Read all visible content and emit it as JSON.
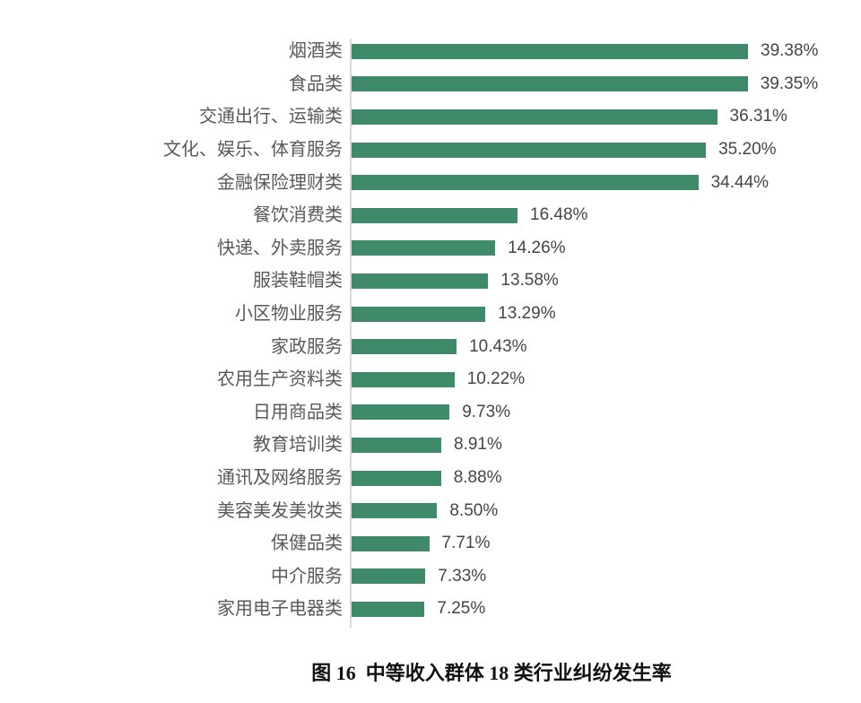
{
  "page": {
    "background_color": "#ffffff"
  },
  "chart_data": {
    "type": "bar",
    "orientation": "horizontal",
    "title": "图 16  中等收入群体 18 类行业纠纷发生率",
    "xlabel": "",
    "ylabel": "",
    "xlim": [
      0,
      40
    ],
    "grid": false,
    "legend": false,
    "bar_color": "#3f8a68",
    "axis_line_color": "#d9d9d9",
    "label_color": "#595959",
    "value_color": "#454545",
    "categories": [
      "烟酒类",
      "食品类",
      "交通出行、运输类",
      "文化、娱乐、体育服务",
      "金融保险理财类",
      "餐饮消费类",
      "快递、外卖服务",
      "服装鞋帽类",
      "小区物业服务",
      "家政服务",
      "农用生产资料类",
      "日用商品类",
      "教育培训类",
      "通讯及网络服务",
      "美容美发美妆类",
      "保健品类",
      "中介服务",
      "家用电子电器类"
    ],
    "values": [
      39.38,
      39.35,
      36.31,
      35.2,
      34.44,
      16.48,
      14.26,
      13.58,
      13.29,
      10.43,
      10.22,
      9.73,
      8.91,
      8.88,
      8.5,
      7.71,
      7.33,
      7.25
    ],
    "value_labels": [
      "39.38%",
      "39.35%",
      "36.31%",
      "35.20%",
      "34.44%",
      "16.48%",
      "14.26%",
      "13.58%",
      "13.29%",
      "10.43%",
      "10.22%",
      "9.73%",
      "8.91%",
      "8.88%",
      "8.50%",
      "7.71%",
      "7.33%",
      "7.25%"
    ]
  },
  "caption": {
    "text": "图 16  中等收入群体 18 类行业纠纷发生率"
  }
}
